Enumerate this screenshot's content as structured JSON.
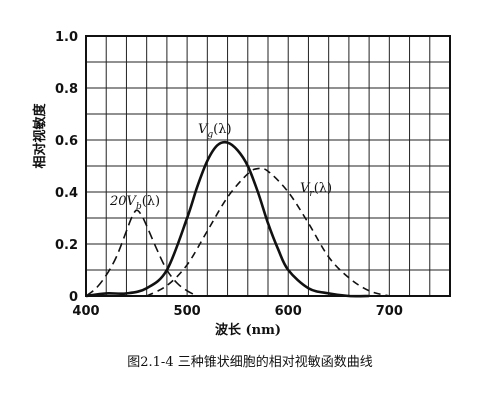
{
  "chart_data": {
    "type": "line",
    "xlabel": "波长 (nm)",
    "ylabel": "相对视敏度",
    "caption": "图2.1-4  三种锥状细胞的相对视敏函数曲线",
    "xlim": [
      400,
      760
    ],
    "ylim": [
      0,
      1.0
    ],
    "xticks": [
      400,
      500,
      600,
      700
    ],
    "yticks": [
      0,
      0.2,
      0.4,
      0.6,
      0.8,
      1.0
    ],
    "ytick_labels": [
      "0",
      "0.2",
      "0.4",
      "0.6",
      "0.8",
      "1.0"
    ],
    "grid": true,
    "series": [
      {
        "name": "20Vb(λ)",
        "style": "dashed",
        "x": [
          400,
          410,
          420,
          430,
          440,
          445,
          450,
          455,
          460,
          470,
          480,
          490,
          500,
          510
        ],
        "y": [
          0.0,
          0.03,
          0.08,
          0.15,
          0.25,
          0.3,
          0.33,
          0.31,
          0.27,
          0.18,
          0.1,
          0.05,
          0.02,
          0.0
        ]
      },
      {
        "name": "Vg(λ)",
        "style": "solid",
        "x": [
          400,
          420,
          440,
          460,
          480,
          500,
          510,
          520,
          530,
          540,
          550,
          560,
          570,
          580,
          590,
          600,
          620,
          640,
          660,
          680
        ],
        "y": [
          0.0,
          0.01,
          0.01,
          0.03,
          0.1,
          0.3,
          0.42,
          0.52,
          0.58,
          0.59,
          0.56,
          0.5,
          0.4,
          0.28,
          0.18,
          0.1,
          0.03,
          0.01,
          0.0,
          0.0
        ]
      },
      {
        "name": "Vr(λ)",
        "style": "dashed",
        "x": [
          460,
          480,
          500,
          520,
          540,
          560,
          570,
          580,
          600,
          620,
          640,
          660,
          680,
          700
        ],
        "y": [
          0.0,
          0.04,
          0.12,
          0.25,
          0.38,
          0.47,
          0.49,
          0.48,
          0.4,
          0.28,
          0.15,
          0.07,
          0.02,
          0.0
        ]
      }
    ],
    "series_labels": [
      {
        "main": "20V",
        "sub": "b",
        "tail": "(λ)"
      },
      {
        "main": "V",
        "sub": "g",
        "tail": "(λ)"
      },
      {
        "main": "V",
        "sub": "r",
        "tail": "(λ)"
      }
    ]
  }
}
